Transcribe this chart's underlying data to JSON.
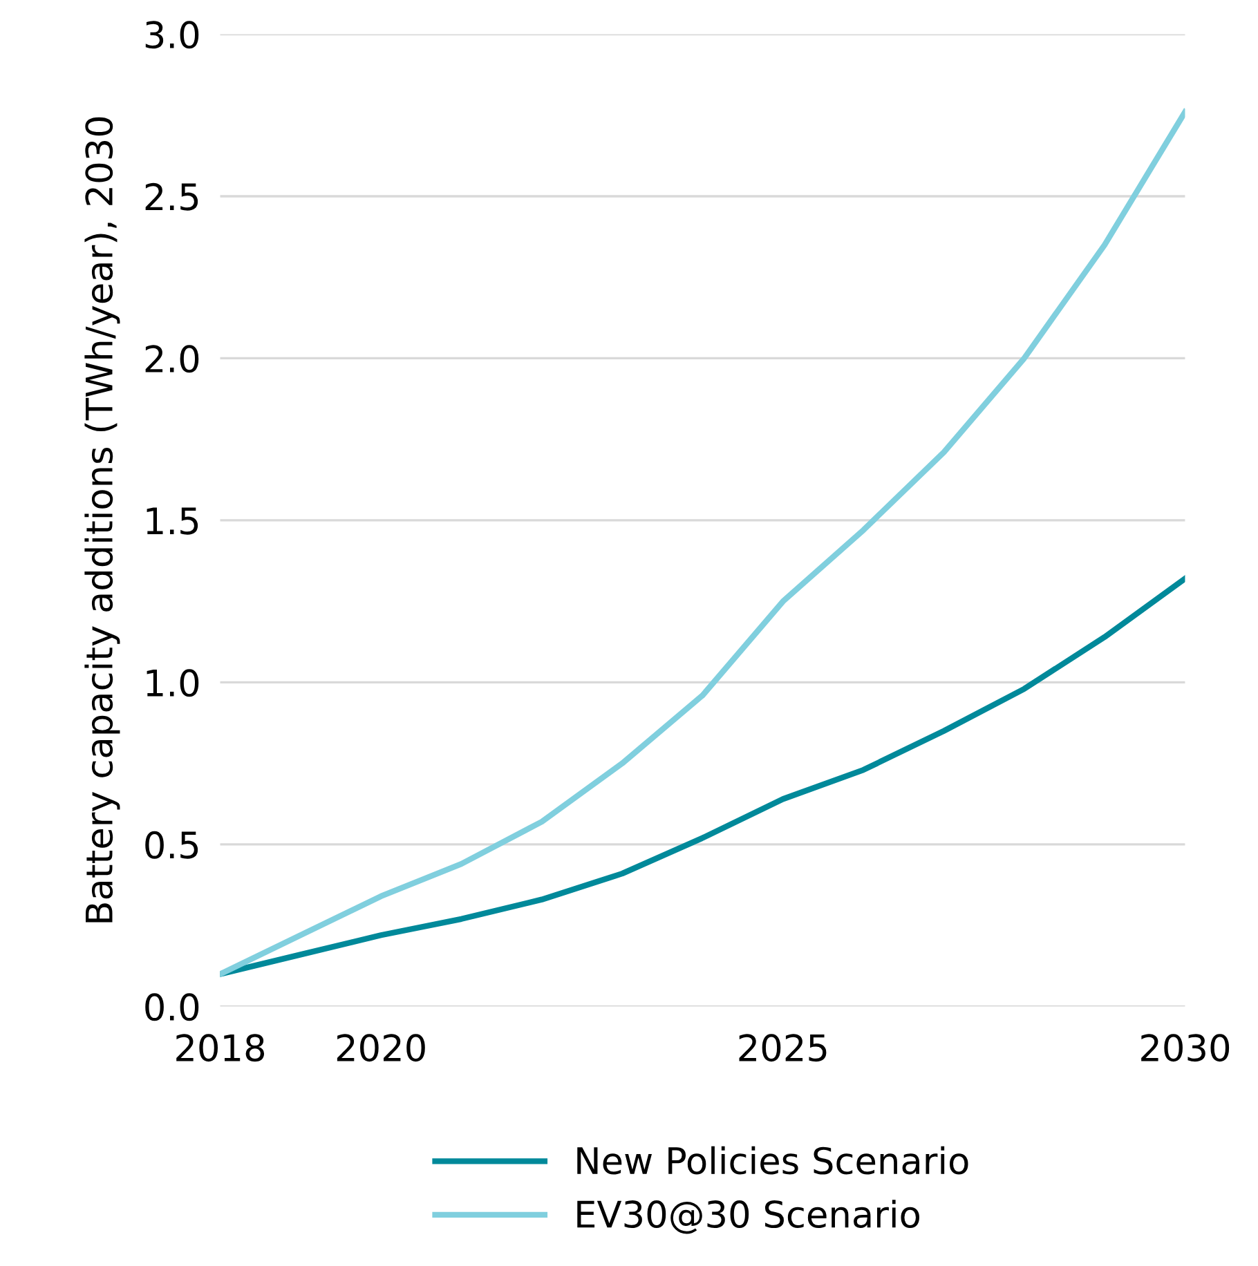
{
  "chart_data": {
    "type": "line",
    "ylabel": "Battery capacity additions (TWh/year), 2030",
    "x": [
      2018,
      2019,
      2020,
      2021,
      2022,
      2023,
      2024,
      2025,
      2026,
      2027,
      2028,
      2029,
      2030
    ],
    "series": [
      {
        "name": "New Policies Scenario",
        "color": "#00899a",
        "values": [
          0.1,
          0.16,
          0.22,
          0.27,
          0.33,
          0.41,
          0.52,
          0.64,
          0.73,
          0.85,
          0.98,
          1.14,
          1.32
        ]
      },
      {
        "name": "EV30@30 Scenario",
        "color": "#80cfde",
        "values": [
          0.1,
          0.22,
          0.34,
          0.44,
          0.57,
          0.75,
          0.96,
          1.25,
          1.47,
          1.71,
          2.0,
          2.35,
          2.76
        ]
      }
    ],
    "xlim": [
      2018,
      2030
    ],
    "xticks": [
      2018,
      2020,
      2025,
      2030
    ],
    "ylim": [
      0,
      3
    ],
    "yticks": [
      {
        "value": 0,
        "label": "0.0"
      },
      {
        "value": 0.5,
        "label": "0.5"
      },
      {
        "value": 1,
        "label": "1.0"
      },
      {
        "value": 1.5,
        "label": "1.5"
      },
      {
        "value": 2,
        "label": "2.0"
      },
      {
        "value": 2.5,
        "label": "2.5"
      },
      {
        "value": 3,
        "label": "3.0"
      }
    ],
    "grid": "y",
    "legend": "bottom",
    "marker": "none",
    "line_style": "solid"
  }
}
